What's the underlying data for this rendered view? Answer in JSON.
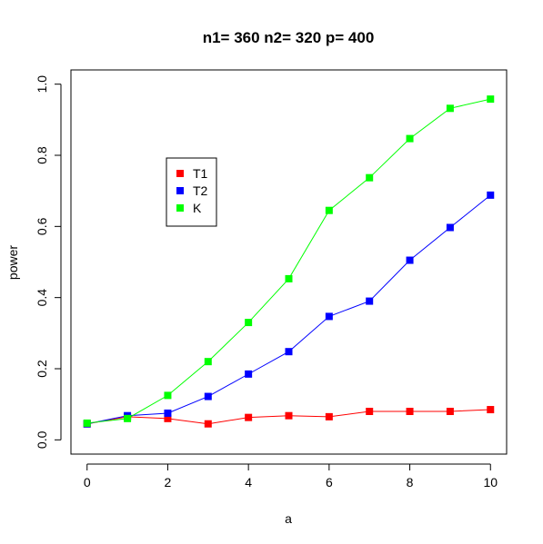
{
  "chart_data": {
    "type": "line",
    "title": "n1= 360 n2= 320 p= 400",
    "xlabel": "a",
    "ylabel": "power",
    "x": [
      0,
      1,
      2,
      3,
      4,
      5,
      6,
      7,
      8,
      9,
      10
    ],
    "xlim": [
      -0.4,
      10.4
    ],
    "ylim": [
      -0.04,
      1.04
    ],
    "xticks": [
      "0",
      "2",
      "4",
      "6",
      "8",
      "10"
    ],
    "yticks": [
      "0.0",
      "0.2",
      "0.4",
      "0.6",
      "0.8",
      "1.0"
    ],
    "grid": false,
    "legend_position": "top-left",
    "series": [
      {
        "name": "T1",
        "color": "#ff0000",
        "values": [
          0.045,
          0.065,
          0.06,
          0.045,
          0.063,
          0.068,
          0.065,
          0.08,
          0.08,
          0.08,
          0.085
        ]
      },
      {
        "name": "T2",
        "color": "#0000ff",
        "values": [
          0.045,
          0.068,
          0.075,
          0.122,
          0.185,
          0.248,
          0.347,
          0.39,
          0.505,
          0.597,
          0.688
        ]
      },
      {
        "name": "K",
        "color": "#00ff00",
        "values": [
          0.047,
          0.06,
          0.125,
          0.22,
          0.33,
          0.453,
          0.645,
          0.737,
          0.847,
          0.932,
          0.958
        ]
      }
    ]
  }
}
